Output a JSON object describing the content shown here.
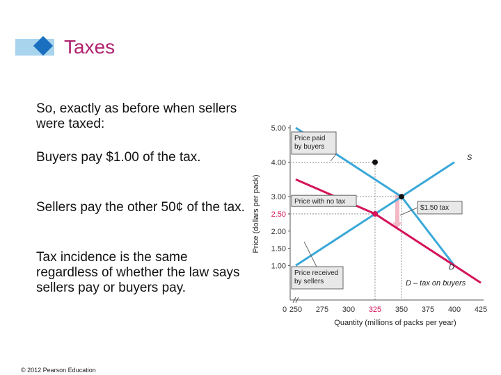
{
  "slide": {
    "title": "Taxes",
    "paragraphs": [
      "So, exactly as before when sellers were taxed:",
      "Buyers pay $1.00 of the tax.",
      "Sellers pay the other 50¢ of the tax.",
      "Tax incidence is the same regardless of whether the law says sellers pay or buyers pay."
    ],
    "copyright": "© 2012 Pearson Education"
  },
  "colors": {
    "title": "#b0216e",
    "supply_line": "#3aa8d8",
    "demand_tax_line": "#d4145a",
    "annotation_box": "#e8e8e8",
    "tax_arrow": "#f2b8c6"
  },
  "chart_data": {
    "type": "line",
    "xlabel": "Quantity (millions of packs per year)",
    "ylabel": "Price (dollars per pack)",
    "xlim": [
      250,
      425
    ],
    "ylim": [
      0,
      5
    ],
    "x_ticks": [
      "0",
      "250",
      "275",
      "300",
      "325",
      "350",
      "375",
      "400",
      "425"
    ],
    "y_ticks": [
      "1.00",
      "1.50",
      "2.00",
      "2.50",
      "3.00",
      "4.00",
      "5.00"
    ],
    "highlight_x_tick": "325",
    "highlight_y_tick": "2.50",
    "series": [
      {
        "name": "S",
        "points": [
          [
            250,
            1.0
          ],
          [
            350,
            3.0
          ],
          [
            400,
            4.0
          ]
        ]
      },
      {
        "name": "D",
        "points": [
          [
            250,
            5.0
          ],
          [
            350,
            3.0
          ],
          [
            400,
            1.0
          ]
        ]
      },
      {
        "name": "D – tax on buyers",
        "points": [
          [
            250,
            3.5
          ],
          [
            325,
            2.5
          ],
          [
            425,
            0.5
          ]
        ]
      }
    ],
    "equilibrium_points": [
      {
        "label": "no tax",
        "x": 350,
        "y": 3.0
      },
      {
        "label": "buyers pay",
        "x": 325,
        "y": 4.0
      },
      {
        "label": "sellers receive",
        "x": 325,
        "y": 2.5
      }
    ],
    "annotations": {
      "price_paid": "Price paid by buyers",
      "price_no_tax": "Price with no tax",
      "price_received": "Price received by sellers",
      "tax": "$1.50 tax"
    },
    "line_labels": {
      "supply": "S",
      "demand": "D",
      "demand_tax": "D – tax on buyers"
    }
  }
}
